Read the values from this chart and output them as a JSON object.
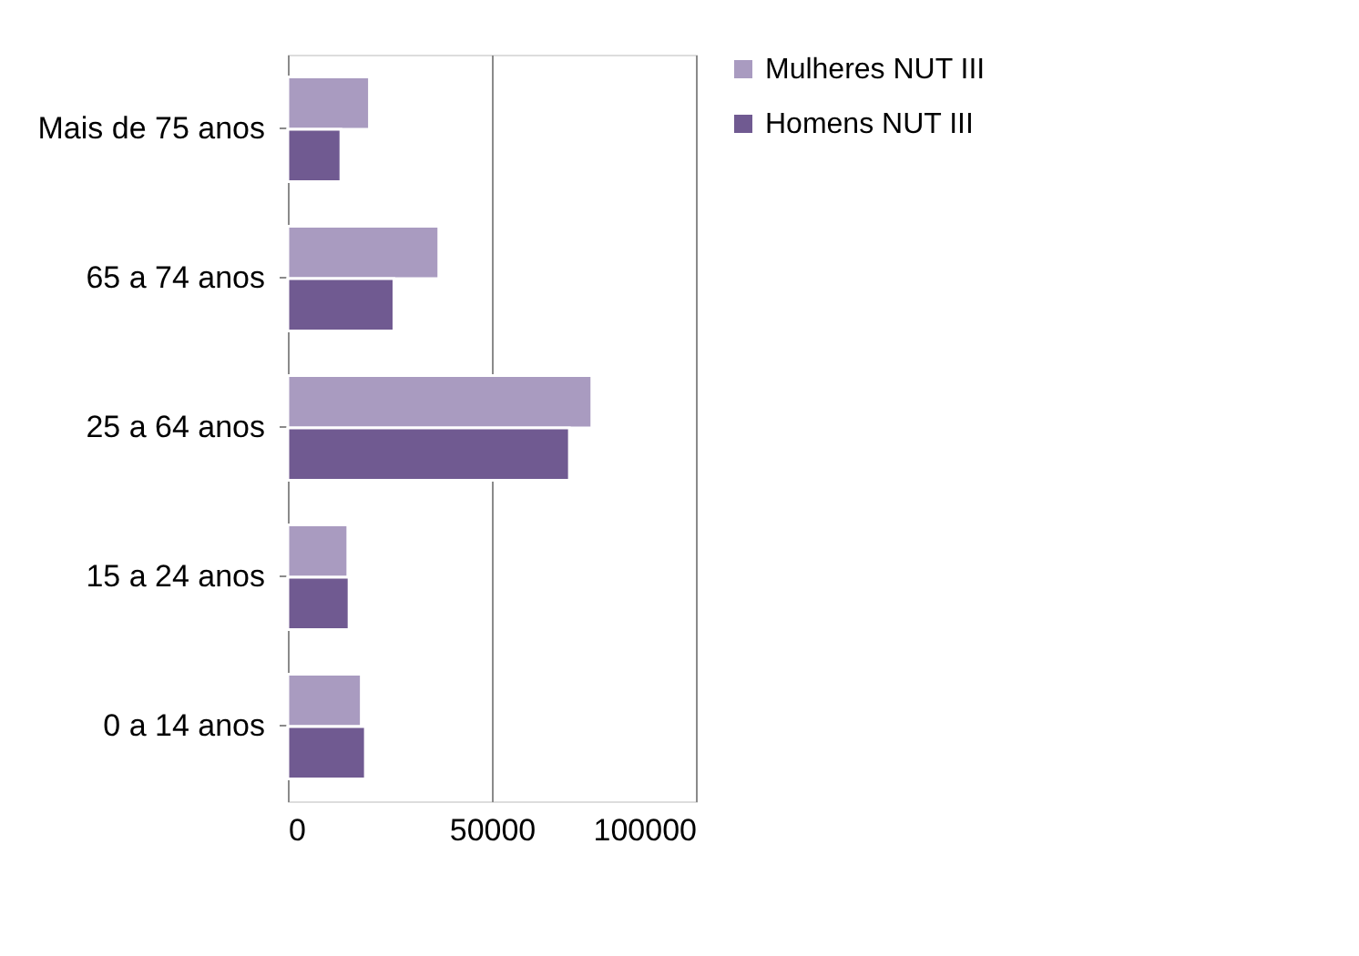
{
  "chart_data": {
    "type": "bar",
    "orientation": "horizontal",
    "categories": [
      "Mais de 75 anos",
      "65 a 74 anos",
      "25  a 64 anos",
      "15 a 24 anos",
      "0 a 14 anos"
    ],
    "series": [
      {
        "name": "Mulheres NUT III",
        "color": "#a99bc0",
        "values": [
          20000,
          37000,
          74500,
          14700,
          18000
        ]
      },
      {
        "name": "Homens NUT III",
        "color": "#705a91",
        "values": [
          13000,
          26000,
          69000,
          15000,
          19000
        ]
      }
    ],
    "xlim": [
      0,
      100000
    ],
    "xticks": [
      0,
      50000,
      100000
    ],
    "grid": "x",
    "legend": "right"
  }
}
